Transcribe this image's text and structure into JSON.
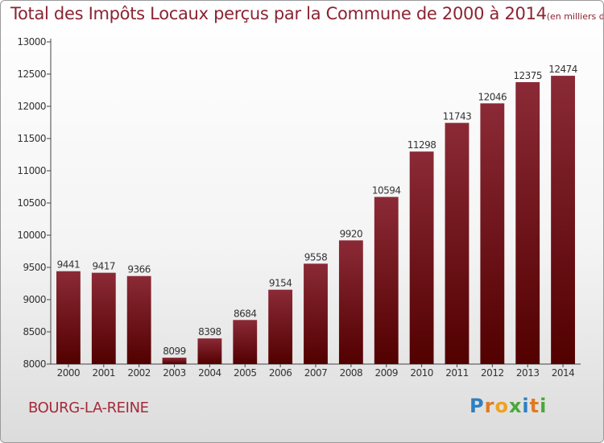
{
  "chart_data": {
    "type": "bar",
    "title": "Total des Impôts Locaux perçus par la Commune de 2000 à 2014",
    "title_unit": "(en milliers d'€)",
    "categories": [
      "2000",
      "2001",
      "2002",
      "2003",
      "2004",
      "2005",
      "2006",
      "2007",
      "2008",
      "2009",
      "2010",
      "2011",
      "2012",
      "2013",
      "2014"
    ],
    "values": [
      9441,
      9417,
      9366,
      8099,
      8398,
      8684,
      9154,
      9558,
      9920,
      10594,
      11298,
      11743,
      12046,
      12375,
      12474
    ],
    "xlabel": "",
    "ylabel": "",
    "ylim": [
      8000,
      13000
    ],
    "yticks": [
      8000,
      8500,
      9000,
      9500,
      10000,
      10500,
      11000,
      11500,
      12000,
      12500,
      13000
    ],
    "grid": false,
    "bar_color_top": "#8b2a36",
    "bar_color_bottom": "#520000"
  },
  "footer": {
    "place": "BOURG-LA-REINE",
    "logo_letters": [
      "P",
      "r",
      "o",
      "x",
      "i",
      "t",
      "i"
    ],
    "logo_colors": [
      "#2e7fc1",
      "#e07a1f",
      "#f0a11c",
      "#4aa83a",
      "#2e7fc1",
      "#e07a1f",
      "#4aa83a"
    ]
  }
}
